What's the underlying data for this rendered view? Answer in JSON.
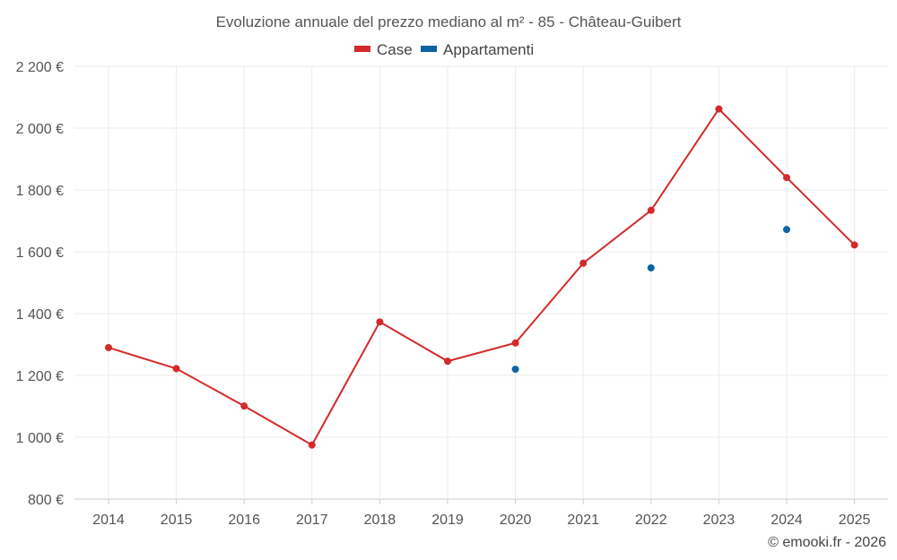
{
  "chart_data": {
    "type": "line",
    "title": "Evoluzione annuale del prezzo mediano al m² - 85 - Château-Guibert",
    "categories": [
      "2014",
      "2015",
      "2016",
      "2017",
      "2018",
      "2019",
      "2020",
      "2021",
      "2022",
      "2023",
      "2024",
      "2025"
    ],
    "series": [
      {
        "name": "Case",
        "color": "#d32a2a",
        "values": [
          1290,
          1222,
          1101,
          975,
          1373,
          1246,
          1305,
          1563,
          1734,
          2062,
          1840,
          1622
        ]
      },
      {
        "name": "Appartamenti",
        "color": "#0b63a3",
        "values": [
          null,
          null,
          null,
          null,
          null,
          null,
          1220,
          null,
          1548,
          null,
          1672,
          null
        ]
      }
    ],
    "ylim": [
      800,
      2200
    ],
    "yticks": [
      800,
      1000,
      1200,
      1400,
      1600,
      1800,
      2000,
      2200
    ],
    "ytick_labels": [
      "800 €",
      "1 000 €",
      "1 200 €",
      "1 400 €",
      "1 600 €",
      "1 800 €",
      "2 000 €",
      "2 200 €"
    ],
    "legend_position": "top-center",
    "grid": true,
    "xlabel": "",
    "ylabel": ""
  },
  "credit": "© emooki.fr - 2026"
}
